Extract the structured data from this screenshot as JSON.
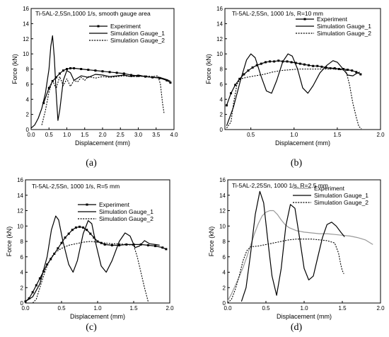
{
  "chart_data": [
    {
      "type": "line",
      "panel_label": "(a)",
      "title": "Ti-5AL-2,5Sn,1000 1/s,  smooth gauge area",
      "xlabel": "Displacement (mm)",
      "ylabel": "Force (kN)",
      "xlim": [
        0,
        4.0
      ],
      "ylim": [
        0,
        16
      ],
      "xticks": [
        "0.0",
        "0.5",
        "1.0",
        "1.5",
        "2.0",
        "2.5",
        "3.0",
        "3.5",
        "4.0"
      ],
      "yticks": [
        "0",
        "2",
        "4",
        "6",
        "8",
        "10",
        "12",
        "14",
        "16"
      ],
      "series": [
        {
          "name": "Experiment",
          "color": "#000000",
          "style": "solid-square",
          "x": [
            0.35,
            0.5,
            0.6,
            0.7,
            0.8,
            0.9,
            1.0,
            1.1,
            1.2,
            1.4,
            1.6,
            1.8,
            2.0,
            2.2,
            2.4,
            2.6,
            2.8,
            3.0,
            3.2,
            3.4,
            3.6,
            3.8,
            3.9
          ],
          "y": [
            3.5,
            5.5,
            6.4,
            6.9,
            7.4,
            7.8,
            8.0,
            8.1,
            8.1,
            8.0,
            7.9,
            7.8,
            7.7,
            7.6,
            7.5,
            7.4,
            7.2,
            7.1,
            7.0,
            6.9,
            6.8,
            6.5,
            6.2
          ]
        },
        {
          "name": "Simulation Gauge_1",
          "color": "#000000",
          "style": "solid",
          "x": [
            0.0,
            0.1,
            0.2,
            0.3,
            0.4,
            0.5,
            0.55,
            0.6,
            0.65,
            0.7,
            0.75,
            0.8,
            0.9,
            1.0,
            1.1,
            1.2,
            1.4,
            1.6,
            1.8,
            2.0,
            2.2,
            2.4,
            2.6,
            2.8,
            3.0,
            3.2,
            3.4,
            3.6,
            3.8,
            3.9
          ],
          "y": [
            0.2,
            0.6,
            1.5,
            2.8,
            4.8,
            8.0,
            11.0,
            12.4,
            9.5,
            5.0,
            1.2,
            2.5,
            6.5,
            7.8,
            7.5,
            6.5,
            7.1,
            6.9,
            7.3,
            7.2,
            7.0,
            7.1,
            7.2,
            7.0,
            7.2,
            7.0,
            6.9,
            6.9,
            6.6,
            6.4
          ]
        },
        {
          "name": "Simulation Gauge_2",
          "color": "#000000",
          "style": "dotted",
          "x": [
            0.3,
            0.4,
            0.5,
            0.6,
            0.7,
            0.8,
            0.9,
            1.0,
            1.1,
            1.2,
            1.3,
            1.4,
            1.5,
            1.6,
            1.8,
            2.0,
            2.2,
            2.4,
            2.6,
            2.8,
            3.0,
            3.2,
            3.4,
            3.55,
            3.62,
            3.68,
            3.72
          ],
          "y": [
            0.6,
            2.5,
            5.0,
            6.5,
            5.4,
            7.0,
            5.8,
            6.7,
            5.7,
            6.5,
            6.3,
            6.9,
            6.5,
            7.0,
            6.8,
            7.0,
            6.9,
            7.0,
            7.1,
            7.0,
            7.0,
            7.1,
            7.0,
            7.1,
            6.0,
            3.5,
            2.2
          ]
        }
      ]
    },
    {
      "type": "line",
      "panel_label": "(b)",
      "title": "Ti-5AL-2,5Sn, 1000 1/s, R=10 mm",
      "xlabel": "Displacement (mm)",
      "ylabel": "Force (kN)",
      "xlim": [
        0.2,
        2.0
      ],
      "ylim": [
        0,
        16
      ],
      "xticks": [
        "0.5",
        "1.0",
        "1.5",
        "2.0"
      ],
      "yticks": [
        "0",
        "2",
        "4",
        "6",
        "8",
        "10",
        "12",
        "14",
        "16"
      ],
      "series": [
        {
          "name": "Experiment",
          "color": "#000000",
          "style": "solid-square",
          "x": [
            0.22,
            0.27,
            0.32,
            0.37,
            0.42,
            0.47,
            0.52,
            0.57,
            0.62,
            0.67,
            0.72,
            0.77,
            0.82,
            0.87,
            0.92,
            0.97,
            1.02,
            1.07,
            1.12,
            1.17,
            1.22,
            1.27,
            1.32,
            1.37,
            1.42,
            1.47,
            1.52,
            1.57,
            1.62,
            1.67,
            1.72,
            1.77
          ],
          "y": [
            3.2,
            4.8,
            5.9,
            6.7,
            7.3,
            7.8,
            8.2,
            8.5,
            8.7,
            8.9,
            9.0,
            9.0,
            9.1,
            9.0,
            9.0,
            8.9,
            8.8,
            8.7,
            8.6,
            8.5,
            8.4,
            8.4,
            8.3,
            8.2,
            8.1,
            8.1,
            8.0,
            8.0,
            7.9,
            7.8,
            7.6,
            7.3
          ]
        },
        {
          "name": "Simulation Gauge_1",
          "color": "#000000",
          "style": "solid",
          "x": [
            0.22,
            0.3,
            0.38,
            0.45,
            0.5,
            0.55,
            0.62,
            0.68,
            0.74,
            0.8,
            0.87,
            0.93,
            0.98,
            1.04,
            1.1,
            1.16,
            1.22,
            1.3,
            1.38,
            1.45,
            1.5,
            1.56,
            1.62,
            1.68,
            1.72,
            1.76
          ],
          "y": [
            0.5,
            3.0,
            6.5,
            9.2,
            10.0,
            9.5,
            7.0,
            5.1,
            4.8,
            6.5,
            9.0,
            10.0,
            9.7,
            8.0,
            5.5,
            4.8,
            5.8,
            7.5,
            8.5,
            9.1,
            8.9,
            8.1,
            7.2,
            7.1,
            7.4,
            7.6
          ]
        },
        {
          "name": "Simulation Gauge_2",
          "color": "#000000",
          "style": "dotted",
          "x": [
            0.22,
            0.27,
            0.3,
            0.34,
            0.38,
            0.45,
            0.55,
            0.65,
            0.75,
            0.85,
            0.95,
            1.05,
            1.15,
            1.25,
            1.35,
            1.45,
            1.55,
            1.6,
            1.64,
            1.68,
            1.72,
            1.75,
            1.78
          ],
          "y": [
            0.2,
            1.0,
            3.5,
            6.0,
            6.7,
            6.9,
            7.1,
            7.3,
            7.6,
            7.8,
            7.9,
            8.0,
            8.0,
            8.0,
            8.0,
            8.0,
            7.9,
            7.8,
            6.0,
            3.5,
            1.6,
            0.4,
            0.1
          ]
        }
      ]
    },
    {
      "type": "line",
      "panel_label": "(c)",
      "title": "Ti-5AL-2,5Sn,  1000 1/s,  R=5 mm",
      "xlabel": "Displacement (mm)",
      "ylabel": "Force (kN)",
      "xlim": [
        0,
        2.0
      ],
      "ylim": [
        0,
        16
      ],
      "xticks": [
        "0.0",
        "0.5",
        "1.0",
        "1.5",
        "2.0"
      ],
      "yticks": [
        "0",
        "2",
        "4",
        "6",
        "8",
        "10",
        "12",
        "14",
        "16"
      ],
      "series": [
        {
          "name": "Experiment",
          "color": "#000000",
          "style": "solid-square",
          "x": [
            0.0,
            0.05,
            0.1,
            0.15,
            0.2,
            0.25,
            0.3,
            0.35,
            0.4,
            0.45,
            0.5,
            0.55,
            0.6,
            0.65,
            0.7,
            0.75,
            0.8,
            0.85,
            0.9,
            0.95,
            1.0,
            1.05,
            1.1,
            1.2,
            1.3,
            1.4,
            1.5,
            1.6,
            1.7,
            1.8,
            1.9,
            1.95
          ],
          "y": [
            0.2,
            0.6,
            1.4,
            2.3,
            3.2,
            4.1,
            5.0,
            5.7,
            6.4,
            7.1,
            7.8,
            8.5,
            9.0,
            9.5,
            9.8,
            9.9,
            9.8,
            9.5,
            9.0,
            8.5,
            8.0,
            7.8,
            7.6,
            7.5,
            7.5,
            7.6,
            7.6,
            7.6,
            7.5,
            7.4,
            7.2,
            7.0
          ]
        },
        {
          "name": "Simulation Gauge_1",
          "color": "#000000",
          "style": "solid",
          "x": [
            0.0,
            0.1,
            0.2,
            0.3,
            0.36,
            0.42,
            0.46,
            0.52,
            0.6,
            0.66,
            0.72,
            0.8,
            0.87,
            0.92,
            0.98,
            1.05,
            1.12,
            1.2,
            1.3,
            1.38,
            1.45,
            1.52,
            1.58,
            1.65,
            1.72,
            1.8,
            1.86
          ],
          "y": [
            0.2,
            0.8,
            2.5,
            6.0,
            9.5,
            11.3,
            10.8,
            8.0,
            5.0,
            4.0,
            5.5,
            9.0,
            10.7,
            10.3,
            7.5,
            4.8,
            4.0,
            5.5,
            8.0,
            9.1,
            8.7,
            7.2,
            7.4,
            8.1,
            7.7,
            7.6,
            7.5
          ]
        },
        {
          "name": "Simulation Gauge_2",
          "color": "#000000",
          "style": "dotted",
          "x": [
            0.1,
            0.15,
            0.2,
            0.25,
            0.3,
            0.35,
            0.4,
            0.5,
            0.6,
            0.7,
            0.8,
            0.9,
            1.0,
            1.1,
            1.2,
            1.3,
            1.4,
            1.5,
            1.55,
            1.6,
            1.65,
            1.7
          ],
          "y": [
            0.0,
            0.5,
            2.0,
            3.5,
            4.8,
            5.8,
            6.5,
            7.1,
            7.5,
            7.7,
            7.9,
            8.0,
            7.9,
            7.8,
            7.7,
            7.7,
            7.6,
            7.5,
            6.0,
            4.0,
            2.0,
            0.2
          ]
        }
      ]
    },
    {
      "type": "line",
      "panel_label": "(d)",
      "title": "Ti-5AL-2,25Sn,  1000 1/s,  R=2.5 mm",
      "xlabel": "Displacement (mm)",
      "ylabel": "Force (kN)",
      "xlim": [
        0,
        2.0
      ],
      "ylim": [
        0,
        16
      ],
      "xticks": [
        "0.0",
        "0.5",
        "1.0",
        "1.5",
        "2.0"
      ],
      "yticks": [
        "0",
        "2",
        "4",
        "6",
        "8",
        "10",
        "12",
        "14",
        "16"
      ],
      "series": [
        {
          "name": "Experiment",
          "color": "#999999",
          "style": "solid",
          "x": [
            0.0,
            0.05,
            0.1,
            0.15,
            0.2,
            0.25,
            0.3,
            0.35,
            0.4,
            0.45,
            0.5,
            0.55,
            0.6,
            0.65,
            0.7,
            0.75,
            0.8,
            0.9,
            1.0,
            1.1,
            1.2,
            1.3,
            1.4,
            1.5,
            1.6,
            1.7,
            1.8,
            1.9
          ],
          "y": [
            0.3,
            1.2,
            2.3,
            3.4,
            4.6,
            6.0,
            7.5,
            9.0,
            10.3,
            11.3,
            11.8,
            12.0,
            12.0,
            11.5,
            10.8,
            10.2,
            9.8,
            9.4,
            9.2,
            9.1,
            9.0,
            9.0,
            8.9,
            8.8,
            8.7,
            8.5,
            8.2,
            7.6
          ]
        },
        {
          "name": "Simulation Gauge_1",
          "color": "#000000",
          "style": "solid",
          "x": [
            0.18,
            0.24,
            0.3,
            0.36,
            0.42,
            0.47,
            0.52,
            0.58,
            0.64,
            0.7,
            0.76,
            0.82,
            0.88,
            0.94,
            1.0,
            1.06,
            1.12,
            1.18,
            1.24,
            1.3,
            1.36,
            1.42,
            1.48,
            1.53
          ],
          "y": [
            0.2,
            2.0,
            6.5,
            11.5,
            14.5,
            13.0,
            8.5,
            3.5,
            1.0,
            4.5,
            10.0,
            12.8,
            12.3,
            8.5,
            4.5,
            3.0,
            3.5,
            6.0,
            8.5,
            10.2,
            10.5,
            10.0,
            9.2,
            8.6
          ]
        },
        {
          "name": "Simulation Gauge_2",
          "color": "#000000",
          "style": "dotted",
          "x": [
            0.0,
            0.05,
            0.1,
            0.15,
            0.2,
            0.25,
            0.3,
            0.4,
            0.5,
            0.6,
            0.7,
            0.8,
            0.9,
            1.0,
            1.1,
            1.2,
            1.3,
            1.4,
            1.45,
            1.48,
            1.5,
            1.52
          ],
          "y": [
            0.0,
            0.5,
            1.8,
            3.5,
            5.5,
            6.8,
            7.3,
            7.4,
            7.6,
            7.8,
            8.0,
            8.2,
            8.3,
            8.3,
            8.3,
            8.2,
            8.1,
            7.8,
            6.5,
            5.0,
            4.2,
            3.8
          ]
        }
      ]
    }
  ]
}
